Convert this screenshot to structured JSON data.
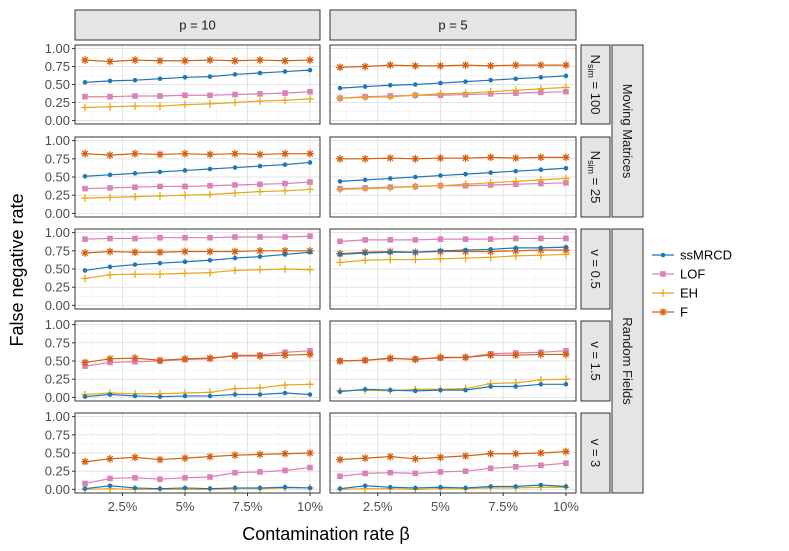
{
  "chart_data": {
    "type": "line",
    "xlabel": "Contamination rate β",
    "ylabel": "False negative rate",
    "x": [
      0.01,
      0.02,
      0.03,
      0.04,
      0.05,
      0.06,
      0.07,
      0.08,
      0.09,
      0.1
    ],
    "xlim": [
      0.006,
      0.104
    ],
    "ylim": [
      0,
      1
    ],
    "x_ticks": [
      {
        "value": 0.025,
        "label": "2.5%"
      },
      {
        "value": 0.05,
        "label": "5%"
      },
      {
        "value": 0.075,
        "label": "7.5%"
      },
      {
        "value": 0.1,
        "label": "10%"
      }
    ],
    "y_ticks": [
      {
        "value": 0,
        "label": "0.00"
      },
      {
        "value": 0.25,
        "label": "0.25"
      },
      {
        "value": 0.5,
        "label": "0.50"
      },
      {
        "value": 0.75,
        "label": "0.75"
      },
      {
        "value": 1,
        "label": "1.00"
      }
    ],
    "grid": true,
    "legend_position": "right",
    "legend": [
      {
        "name": "ssMRCD",
        "color": "#1f78b4",
        "marker": "circle"
      },
      {
        "name": "LOF",
        "color": "#d982b9",
        "marker": "square"
      },
      {
        "name": "EH",
        "color": "#e6a817",
        "marker": "plus"
      },
      {
        "name": "F",
        "color": "#d65f0e",
        "marker": "star"
      }
    ],
    "column_strips": [
      "p = 10",
      "p = 5"
    ],
    "row_strips": [
      {
        "type": "nsim",
        "value": "100"
      },
      {
        "type": "nsim",
        "value": "25"
      },
      {
        "type": "nu",
        "label": "v = 0.5"
      },
      {
        "type": "nu",
        "label": "v = 1.5"
      },
      {
        "type": "nu",
        "label": "v = 3"
      }
    ],
    "nsim_label": {
      "base": "N",
      "sub": "sim",
      "rest": " = "
    },
    "outer_strips": [
      {
        "label": "Moving Matrices",
        "rows": [
          0,
          1
        ]
      },
      {
        "label": "Random Fields",
        "rows": [
          2,
          3,
          4
        ]
      }
    ],
    "panels": [
      [
        {
          "series": [
            {
              "name": "ssMRCD",
              "values": [
                0.53,
                0.55,
                0.56,
                0.58,
                0.6,
                0.61,
                0.64,
                0.66,
                0.68,
                0.7
              ]
            },
            {
              "name": "LOF",
              "values": [
                0.33,
                0.33,
                0.34,
                0.34,
                0.35,
                0.35,
                0.36,
                0.37,
                0.38,
                0.4
              ]
            },
            {
              "name": "EH",
              "values": [
                0.18,
                0.19,
                0.2,
                0.2,
                0.22,
                0.23,
                0.25,
                0.27,
                0.28,
                0.3
              ]
            },
            {
              "name": "F",
              "values": [
                0.84,
                0.82,
                0.84,
                0.83,
                0.83,
                0.84,
                0.83,
                0.84,
                0.83,
                0.84
              ]
            }
          ]
        },
        {
          "series": [
            {
              "name": "ssMRCD",
              "values": [
                0.45,
                0.47,
                0.49,
                0.5,
                0.52,
                0.54,
                0.56,
                0.58,
                0.6,
                0.62
              ]
            },
            {
              "name": "LOF",
              "values": [
                0.31,
                0.33,
                0.34,
                0.35,
                0.35,
                0.36,
                0.37,
                0.38,
                0.39,
                0.4
              ]
            },
            {
              "name": "EH",
              "values": [
                0.31,
                0.32,
                0.33,
                0.35,
                0.37,
                0.38,
                0.4,
                0.42,
                0.44,
                0.46
              ]
            },
            {
              "name": "F",
              "values": [
                0.74,
                0.75,
                0.77,
                0.76,
                0.76,
                0.77,
                0.76,
                0.77,
                0.77,
                0.77
              ]
            }
          ]
        }
      ],
      [
        {
          "series": [
            {
              "name": "ssMRCD",
              "values": [
                0.51,
                0.53,
                0.55,
                0.57,
                0.59,
                0.61,
                0.63,
                0.65,
                0.67,
                0.7
              ]
            },
            {
              "name": "LOF",
              "values": [
                0.34,
                0.35,
                0.36,
                0.37,
                0.37,
                0.38,
                0.39,
                0.4,
                0.41,
                0.43
              ]
            },
            {
              "name": "EH",
              "values": [
                0.21,
                0.22,
                0.23,
                0.24,
                0.25,
                0.26,
                0.28,
                0.3,
                0.31,
                0.33
              ]
            },
            {
              "name": "F",
              "values": [
                0.82,
                0.8,
                0.82,
                0.81,
                0.82,
                0.81,
                0.82,
                0.81,
                0.82,
                0.82
              ]
            }
          ]
        },
        {
          "series": [
            {
              "name": "ssMRCD",
              "values": [
                0.44,
                0.46,
                0.48,
                0.5,
                0.52,
                0.54,
                0.56,
                0.58,
                0.6,
                0.62
              ]
            },
            {
              "name": "LOF",
              "values": [
                0.34,
                0.35,
                0.36,
                0.37,
                0.38,
                0.38,
                0.39,
                0.4,
                0.41,
                0.42
              ]
            },
            {
              "name": "EH",
              "values": [
                0.33,
                0.34,
                0.35,
                0.37,
                0.38,
                0.4,
                0.42,
                0.44,
                0.46,
                0.48
              ]
            },
            {
              "name": "F",
              "values": [
                0.75,
                0.75,
                0.76,
                0.75,
                0.76,
                0.76,
                0.77,
                0.76,
                0.77,
                0.77
              ]
            }
          ]
        }
      ],
      [
        {
          "series": [
            {
              "name": "ssMRCD",
              "values": [
                0.48,
                0.53,
                0.56,
                0.58,
                0.6,
                0.62,
                0.65,
                0.67,
                0.7,
                0.73
              ]
            },
            {
              "name": "LOF",
              "values": [
                0.91,
                0.92,
                0.92,
                0.93,
                0.93,
                0.93,
                0.94,
                0.94,
                0.94,
                0.95
              ]
            },
            {
              "name": "EH",
              "values": [
                0.37,
                0.42,
                0.43,
                0.43,
                0.44,
                0.45,
                0.48,
                0.49,
                0.5,
                0.49
              ]
            },
            {
              "name": "F",
              "values": [
                0.72,
                0.74,
                0.73,
                0.73,
                0.74,
                0.74,
                0.74,
                0.75,
                0.75,
                0.75
              ]
            }
          ]
        },
        {
          "series": [
            {
              "name": "ssMRCD",
              "values": [
                0.7,
                0.72,
                0.73,
                0.73,
                0.75,
                0.76,
                0.77,
                0.79,
                0.79,
                0.8
              ]
            },
            {
              "name": "LOF",
              "values": [
                0.88,
                0.9,
                0.9,
                0.9,
                0.91,
                0.91,
                0.91,
                0.92,
                0.92,
                0.92
              ]
            },
            {
              "name": "EH",
              "values": [
                0.59,
                0.62,
                0.63,
                0.63,
                0.64,
                0.65,
                0.66,
                0.68,
                0.69,
                0.7
              ]
            },
            {
              "name": "F",
              "values": [
                0.71,
                0.73,
                0.74,
                0.73,
                0.74,
                0.74,
                0.74,
                0.75,
                0.76,
                0.76
              ]
            }
          ]
        }
      ],
      [
        {
          "series": [
            {
              "name": "ssMRCD",
              "values": [
                0.01,
                0.04,
                0.02,
                0.01,
                0.02,
                0.02,
                0.04,
                0.04,
                0.06,
                0.04
              ]
            },
            {
              "name": "LOF",
              "values": [
                0.43,
                0.48,
                0.49,
                0.5,
                0.52,
                0.53,
                0.58,
                0.58,
                0.62,
                0.64
              ]
            },
            {
              "name": "EH",
              "values": [
                0.04,
                0.06,
                0.05,
                0.05,
                0.06,
                0.07,
                0.12,
                0.13,
                0.17,
                0.18
              ]
            },
            {
              "name": "F",
              "values": [
                0.48,
                0.53,
                0.54,
                0.51,
                0.53,
                0.54,
                0.57,
                0.57,
                0.58,
                0.59
              ]
            }
          ]
        },
        {
          "series": [
            {
              "name": "ssMRCD",
              "values": [
                0.08,
                0.11,
                0.1,
                0.09,
                0.1,
                0.1,
                0.15,
                0.15,
                0.18,
                0.18
              ]
            },
            {
              "name": "LOF",
              "values": [
                0.5,
                0.51,
                0.53,
                0.53,
                0.54,
                0.55,
                0.6,
                0.61,
                0.62,
                0.64
              ]
            },
            {
              "name": "EH",
              "values": [
                0.09,
                0.1,
                0.09,
                0.11,
                0.11,
                0.12,
                0.19,
                0.2,
                0.24,
                0.25
              ]
            },
            {
              "name": "F",
              "values": [
                0.5,
                0.51,
                0.54,
                0.52,
                0.55,
                0.55,
                0.58,
                0.58,
                0.59,
                0.59
              ]
            }
          ]
        }
      ],
      [
        {
          "series": [
            {
              "name": "ssMRCD",
              "values": [
                0.01,
                0.05,
                0.02,
                0.01,
                0.02,
                0.01,
                0.02,
                0.02,
                0.03,
                0.02
              ]
            },
            {
              "name": "LOF",
              "values": [
                0.08,
                0.15,
                0.16,
                0.14,
                0.16,
                0.17,
                0.23,
                0.24,
                0.26,
                0.3
              ]
            },
            {
              "name": "EH",
              "values": [
                0.0,
                0.01,
                0.0,
                0.0,
                0.0,
                0.0,
                0.01,
                0.01,
                0.02,
                0.02
              ]
            },
            {
              "name": "F",
              "values": [
                0.38,
                0.42,
                0.44,
                0.41,
                0.43,
                0.45,
                0.47,
                0.48,
                0.49,
                0.5
              ]
            }
          ]
        },
        {
          "series": [
            {
              "name": "ssMRCD",
              "values": [
                0.01,
                0.05,
                0.03,
                0.02,
                0.03,
                0.02,
                0.04,
                0.04,
                0.06,
                0.04
              ]
            },
            {
              "name": "LOF",
              "values": [
                0.18,
                0.22,
                0.23,
                0.22,
                0.24,
                0.25,
                0.29,
                0.31,
                0.33,
                0.36
              ]
            },
            {
              "name": "EH",
              "values": [
                0.0,
                0.01,
                0.01,
                0.0,
                0.01,
                0.01,
                0.02,
                0.02,
                0.03,
                0.03
              ]
            },
            {
              "name": "F",
              "values": [
                0.41,
                0.43,
                0.45,
                0.42,
                0.44,
                0.46,
                0.49,
                0.49,
                0.5,
                0.52
              ]
            }
          ]
        }
      ]
    ]
  }
}
